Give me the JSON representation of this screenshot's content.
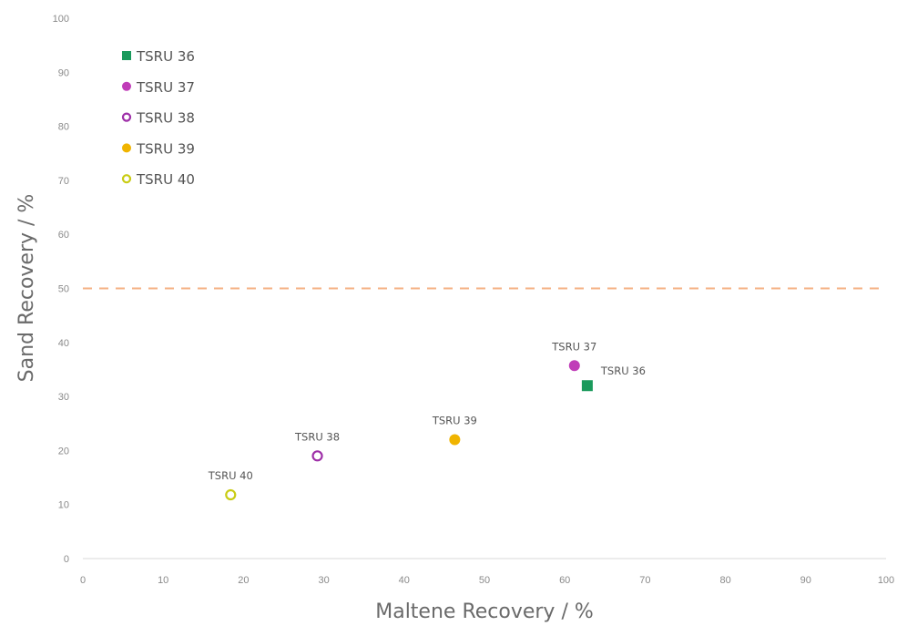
{
  "chart_data": {
    "type": "scatter",
    "xlabel": "Maltene Recovery / %",
    "ylabel": "Sand Recovery / %",
    "xlim": [
      0,
      100
    ],
    "ylim": [
      0,
      100
    ],
    "xticks": [
      "0",
      "10",
      "20",
      "30",
      "40",
      "50",
      "60",
      "70",
      "80",
      "90",
      "100"
    ],
    "yticks": [
      "0",
      "10",
      "20",
      "30",
      "40",
      "50",
      "60",
      "70",
      "80",
      "90",
      "100"
    ],
    "grid": false,
    "legend_position": "top-left",
    "reference_line": {
      "y": 50,
      "style": "dashed",
      "color": "#f4b183"
    },
    "series": [
      {
        "name": "TSRU 36",
        "marker": "square",
        "filled": true,
        "color": "#1a9a5c",
        "x": 62.8,
        "y": 32,
        "label": "TSRU 36"
      },
      {
        "name": "TSRU 37",
        "marker": "circle",
        "filled": true,
        "color": "#c03cb8",
        "x": 61.2,
        "y": 35.7,
        "label": "TSRU 37"
      },
      {
        "name": "TSRU 38",
        "marker": "circle",
        "filled": false,
        "color": "#9e2fa8",
        "x": 29.2,
        "y": 19,
        "label": "TSRU 38"
      },
      {
        "name": "TSRU 39",
        "marker": "circle",
        "filled": true,
        "color": "#f0b400",
        "x": 46.3,
        "y": 22,
        "label": "TSRU 39"
      },
      {
        "name": "TSRU 40",
        "marker": "circle",
        "filled": false,
        "color": "#c9cc14",
        "x": 18.4,
        "y": 11.8,
        "label": "TSRU 40"
      }
    ]
  }
}
